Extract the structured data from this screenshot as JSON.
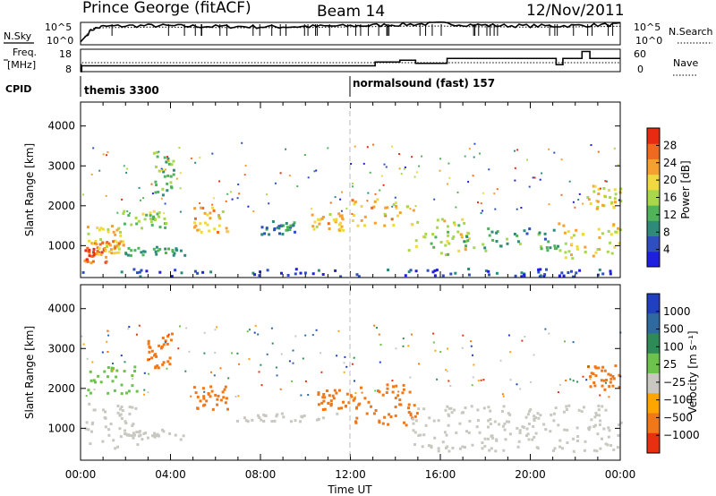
{
  "header": {
    "station": "Prince George (fitACF)",
    "beam": "Beam 14",
    "date": "12/Nov/2011"
  },
  "side_labels": {
    "nsky": "N.Sky",
    "nsearch": "N.Search",
    "freq_top": "Freq.",
    "freq_unit": "[MHz]",
    "nave": "Nave",
    "cpid": "CPID",
    "nsky_ticks": [
      "10^5",
      "10^0"
    ],
    "nsearch_ticks": [
      "10^5",
      "10^0"
    ],
    "freq_ticks": [
      "18",
      "8"
    ],
    "nave_ticks": [
      "60",
      "0"
    ]
  },
  "cpid_segments": [
    {
      "label": "themis 3300",
      "start_hour": 0
    },
    {
      "label": "normalsound (fast) 157",
      "start_hour": 12
    }
  ],
  "colors": {
    "power_scale": [
      "#1f1fe0",
      "#2f4fc0",
      "#2e8b7a",
      "#4fb35a",
      "#a8d84a",
      "#f0d840",
      "#f5a030",
      "#ef6a20",
      "#e82a10"
    ],
    "velocity_scale": [
      "#2040c0",
      "#2e6aa0",
      "#2e8b57",
      "#6cc24a",
      "#c8c8c0",
      "#ffa500",
      "#f07818",
      "#e83010"
    ],
    "dash": "#bbbbbb"
  },
  "chart_data": [
    {
      "type": "line",
      "name": "panel-sky-noise",
      "xlim": [
        0,
        24
      ],
      "x": [
        0,
        0.5,
        1,
        2,
        3,
        4,
        5,
        6,
        7,
        8,
        9,
        10,
        11,
        12,
        13,
        14,
        15,
        16,
        17,
        18,
        19,
        20,
        21,
        22,
        23,
        24
      ],
      "series": [
        {
          "name": "N.Sky",
          "values": [
            1,
            5,
            6,
            6.2,
            6.3,
            6.2,
            6.1,
            6,
            6,
            5.9,
            5.9,
            6,
            6.1,
            6.2,
            6.4,
            6.6,
            6.8,
            7.0,
            6.7,
            6.4,
            6.3,
            6.2,
            6.2,
            6.3,
            6.5,
            6.7
          ]
        },
        {
          "name": "N.Search",
          "values": [
            1,
            5.5,
            5.7,
            5.8,
            5.9,
            5.9,
            5.8,
            5.8,
            5.7,
            5.7,
            5.8,
            5.8,
            5.9,
            6.0,
            6.1,
            6.2,
            6.2,
            6.3,
            6.1,
            6.0,
            6.0,
            5.9,
            5.9,
            6.0,
            6.1,
            6.2
          ]
        }
      ]
    },
    {
      "type": "line",
      "name": "panel-frequency",
      "xlim": [
        0,
        24
      ],
      "x": [
        0,
        0.05,
        1,
        11.9,
        12,
        13.1,
        14.2,
        14.9,
        16.3,
        20.3,
        21.15,
        21.45,
        22.3,
        22.65,
        24
      ],
      "series": [
        {
          "name": "Freq.",
          "values": [
            8,
            10.6,
            10.6,
            10.6,
            10.6,
            12.3,
            13.1,
            11.7,
            13.9,
            13.9,
            11.1,
            13.9,
            17.0,
            13.9,
            13.9
          ]
        },
        {
          "name": "Nave",
          "values": [
            0,
            24,
            24,
            24,
            24,
            24,
            24,
            24,
            24,
            24,
            24,
            24,
            24,
            24,
            24
          ]
        }
      ]
    },
    {
      "type": "heatmap",
      "name": "power-map",
      "title": "",
      "xlabel": "",
      "ylabel": "Slant Range [km]",
      "xlim": [
        0,
        24
      ],
      "ylim": [
        200,
        4600
      ],
      "yticks": [
        1000,
        2000,
        3000,
        4000
      ],
      "colorbar_label": "Power [dB]",
      "colorbar_ticks": [
        "4",
        "8",
        "12",
        "16",
        "20",
        "24",
        "28"
      ],
      "regions": [
        {
          "x0": 0.1,
          "x1": 1.1,
          "y0": 600,
          "y1": 1000,
          "value": 28
        },
        {
          "x0": 0.1,
          "x1": 1.8,
          "y0": 950,
          "y1": 1550,
          "value": 20
        },
        {
          "x0": 0.6,
          "x1": 1.9,
          "y0": 800,
          "y1": 1150,
          "value": 24
        },
        {
          "x0": 1.6,
          "x1": 4.6,
          "y0": 780,
          "y1": 1000,
          "value": 12
        },
        {
          "x0": 1.8,
          "x1": 3.8,
          "y0": 1450,
          "y1": 1900,
          "value": 16
        },
        {
          "x0": 3.2,
          "x1": 4.1,
          "y0": 2300,
          "y1": 3450,
          "value": 14
        },
        {
          "x0": 5.0,
          "x1": 6.6,
          "y0": 1350,
          "y1": 2000,
          "value": 22
        },
        {
          "x0": 8.0,
          "x1": 9.5,
          "y0": 1300,
          "y1": 1650,
          "value": 10
        },
        {
          "x0": 10.2,
          "x1": 11.7,
          "y0": 1400,
          "y1": 1850,
          "value": 22
        },
        {
          "x0": 12.0,
          "x1": 14.8,
          "y0": 1500,
          "y1": 2200,
          "value": 22
        },
        {
          "x0": 14.5,
          "x1": 17.5,
          "y0": 800,
          "y1": 1700,
          "value": 18
        },
        {
          "x0": 17.0,
          "x1": 21.2,
          "y0": 900,
          "y1": 1500,
          "value": 12
        },
        {
          "x0": 21.2,
          "x1": 24.0,
          "y0": 700,
          "y1": 1600,
          "value": 20
        },
        {
          "x0": 22.5,
          "x1": 24.0,
          "y0": 1950,
          "y1": 2550,
          "value": 20
        },
        {
          "x0": 0.0,
          "x1": 24.0,
          "y0": 250,
          "y1": 450,
          "value": 6
        }
      ]
    },
    {
      "type": "heatmap",
      "name": "velocity-map",
      "title": "",
      "xlabel": "Time UT",
      "ylabel": "Slant Range [km]",
      "xlim": [
        0,
        24
      ],
      "ylim": [
        200,
        4600
      ],
      "yticks": [
        1000,
        2000,
        3000,
        4000
      ],
      "xticks": [
        "00:00",
        "04:00",
        "08:00",
        "12:00",
        "16:00",
        "20:00",
        "00:00"
      ],
      "colorbar_label": "Velocity [m s⁻¹]",
      "colorbar_ticks": [
        "1000",
        "500",
        "100",
        "25",
        "−25",
        "−100",
        "−500",
        "−1000"
      ],
      "regions": [
        {
          "x0": 0.1,
          "x1": 2.5,
          "y0": 500,
          "y1": 1650,
          "value": 0
        },
        {
          "x0": 1.8,
          "x1": 4.6,
          "y0": 750,
          "y1": 1000,
          "value": 0
        },
        {
          "x0": 2.9,
          "x1": 4.1,
          "y0": 2500,
          "y1": 3400,
          "value": -300
        },
        {
          "x0": 0.2,
          "x1": 2.5,
          "y0": 1900,
          "y1": 2600,
          "value": 150
        },
        {
          "x0": 5.0,
          "x1": 6.5,
          "y0": 1500,
          "y1": 2100,
          "value": -200
        },
        {
          "x0": 6.8,
          "x1": 11.5,
          "y0": 1200,
          "y1": 1400,
          "value": 0
        },
        {
          "x0": 10.5,
          "x1": 12.0,
          "y0": 1500,
          "y1": 2000,
          "value": -300
        },
        {
          "x0": 12.0,
          "x1": 15.0,
          "y0": 1100,
          "y1": 2200,
          "value": -400
        },
        {
          "x0": 14.5,
          "x1": 24.0,
          "y0": 450,
          "y1": 1600,
          "value": 0
        },
        {
          "x0": 22.5,
          "x1": 24.0,
          "y0": 2000,
          "y1": 2600,
          "value": -300
        }
      ]
    }
  ]
}
